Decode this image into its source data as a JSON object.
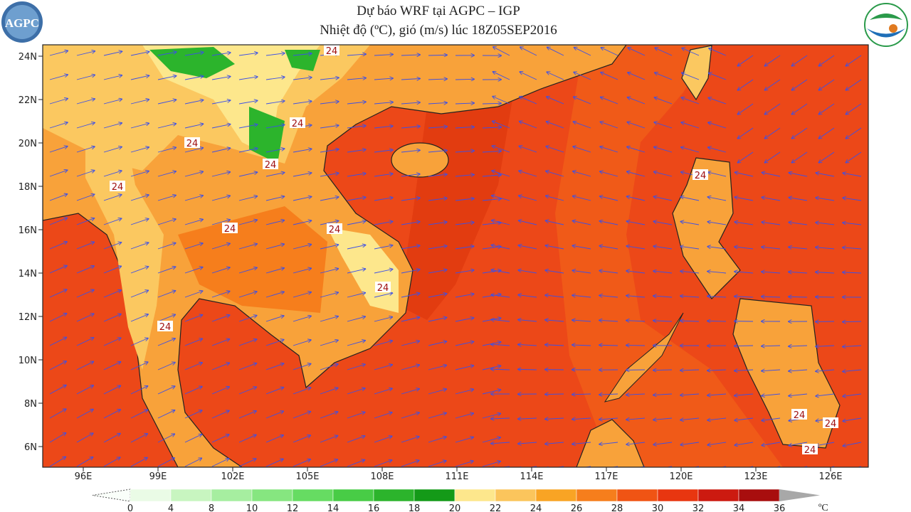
{
  "header": {
    "title": "Dự báo WRF tại AGPC – IGP",
    "subtitle": "Nhiệt độ (ºC), gió (m/s) lúc 18Z05SEP2016",
    "logo_left": "AGPC"
  },
  "map": {
    "lat_labels": [
      "24N",
      "22N",
      "20N",
      "18N",
      "16N",
      "14N",
      "12N",
      "10N",
      "8N",
      "6N"
    ],
    "lon_labels": [
      "96E",
      "99E",
      "102E",
      "105E",
      "108E",
      "111E",
      "114E",
      "117E",
      "120E",
      "123E",
      "126E"
    ],
    "contour_label": "24"
  },
  "colorbar": {
    "ticks": [
      0,
      4,
      8,
      10,
      12,
      14,
      16,
      18,
      20,
      22,
      24,
      26,
      28,
      30,
      32,
      34,
      36
    ],
    "unit": "ºC",
    "colors": [
      "#eafbe6",
      "#c8f5c0",
      "#a6eea0",
      "#86e680",
      "#66dc62",
      "#48cc46",
      "#2cb42c",
      "#149a18",
      "#fde78c",
      "#fbc55c",
      "#f9a424",
      "#f67e1c",
      "#f05414",
      "#e83610",
      "#cc1a10",
      "#a80e0e"
    ]
  }
}
